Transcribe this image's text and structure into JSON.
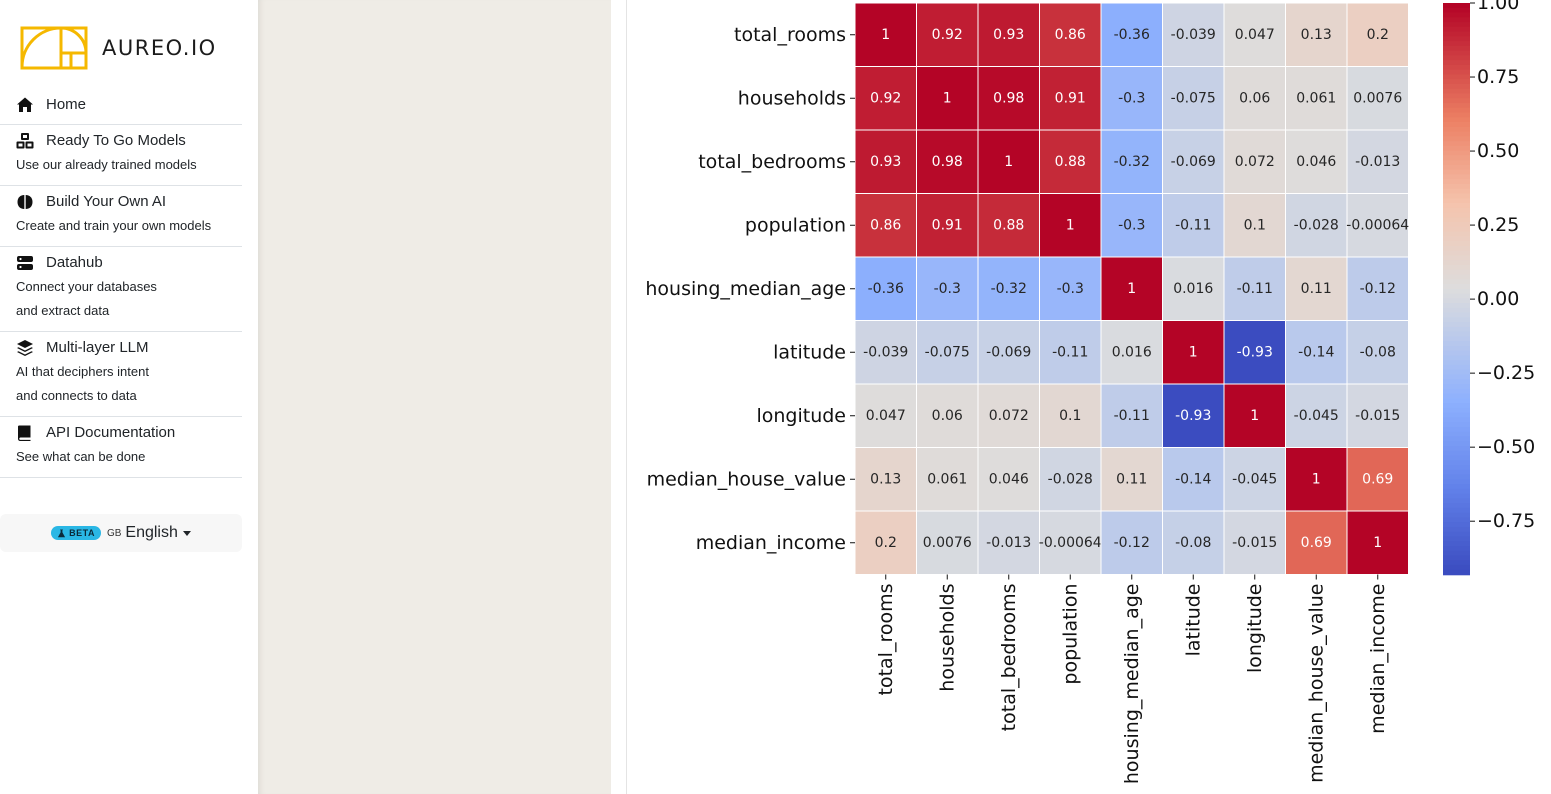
{
  "brand": {
    "name": "AUREO.IO"
  },
  "nav": {
    "home": {
      "title": "Home",
      "icon": "home-icon"
    },
    "ready_models": {
      "title": "Ready To Go Models",
      "desc1": "Use our already trained models",
      "icon": "cubes-icon"
    },
    "build_ai": {
      "title": "Build Your Own AI",
      "desc1": "Create and train your own models",
      "icon": "brain-icon"
    },
    "datahub": {
      "title": "Datahub",
      "desc1": "Connect your databases",
      "desc2": "and extract data",
      "icon": "server-icon"
    },
    "llm": {
      "title": "Multi-layer LLM",
      "desc1": "AI that deciphers intent",
      "desc2": "and connects to data",
      "icon": "layers-icon"
    },
    "api_docs": {
      "title": "API Documentation",
      "desc1": "See what can be done",
      "icon": "book-icon"
    }
  },
  "language": {
    "beta": "BETA",
    "flag": "GB",
    "label": "English"
  },
  "colors": {
    "accent": "#f5b800",
    "beta": "#2ab7e5",
    "panel": "#efece6"
  },
  "chart_data": {
    "type": "heatmap",
    "title": "",
    "variables": [
      "total_rooms",
      "households",
      "total_bedrooms",
      "population",
      "housing_median_age",
      "latitude",
      "longitude",
      "median_house_value",
      "median_income"
    ],
    "matrix": [
      [
        "1",
        "0.92",
        "0.93",
        "0.86",
        "-0.36",
        "-0.039",
        "0.047",
        "0.13",
        "0.2"
      ],
      [
        "0.92",
        "1",
        "0.98",
        "0.91",
        "-0.3",
        "-0.075",
        "0.06",
        "0.061",
        "0.0076"
      ],
      [
        "0.93",
        "0.98",
        "1",
        "0.88",
        "-0.32",
        "-0.069",
        "0.072",
        "0.046",
        "-0.013"
      ],
      [
        "0.86",
        "0.91",
        "0.88",
        "1",
        "-0.3",
        "-0.11",
        "0.1",
        "-0.028",
        "-0.00064"
      ],
      [
        "-0.36",
        "-0.3",
        "-0.32",
        "-0.3",
        "1",
        "0.016",
        "-0.11",
        "0.11",
        "-0.12"
      ],
      [
        "-0.039",
        "-0.075",
        "-0.069",
        "-0.11",
        "0.016",
        "1",
        "-0.93",
        "-0.14",
        "-0.08"
      ],
      [
        "0.047",
        "0.06",
        "0.072",
        "0.1",
        "-0.11",
        "-0.93",
        "1",
        "-0.045",
        "-0.015"
      ],
      [
        "0.13",
        "0.061",
        "0.046",
        "-0.028",
        "0.11",
        "-0.14",
        "-0.045",
        "1",
        "0.69"
      ],
      [
        "0.2",
        "0.0076",
        "-0.013",
        "-0.00064",
        "-0.12",
        "-0.08",
        "-0.015",
        "0.69",
        "1"
      ]
    ],
    "colorbar": {
      "min": -0.93,
      "max": 1.0,
      "colormap": "coolwarm",
      "ticks": [
        "1.00",
        "0.75",
        "0.50",
        "0.25",
        "0.00",
        "−0.25",
        "−0.50",
        "−0.75"
      ],
      "tick_values": [
        1.0,
        0.75,
        0.5,
        0.25,
        0.0,
        -0.25,
        -0.5,
        -0.75
      ]
    }
  }
}
